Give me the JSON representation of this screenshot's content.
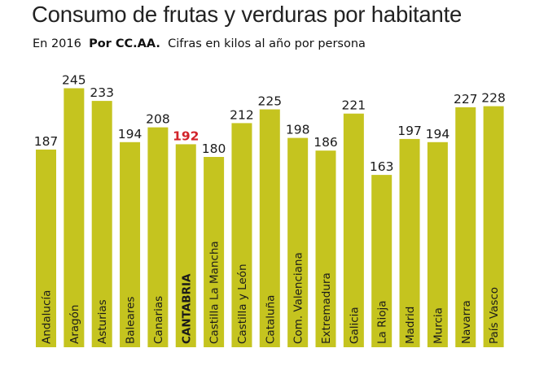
{
  "header": {
    "title": "Consumo de frutas y verduras por habitante",
    "subtitle_year": "En 2016",
    "subtitle_group": "Por CC.AA.",
    "subtitle_unit": "Cifras en kilos al año por persona"
  },
  "colors": {
    "bar": "#c5c41f",
    "label": "#1a1a1a",
    "highlight": "#d2232a"
  },
  "chart_data": {
    "type": "bar",
    "title": "Consumo de frutas y verduras por habitante",
    "categories": [
      "Andalucía",
      "Aragón",
      "Asturias",
      "Baleares",
      "Canarias",
      "CANTABRIA",
      "Castilla La Mancha",
      "Castilla y León",
      "Cataluña",
      "Com. Valenciana",
      "Extremadura",
      "Galicia",
      "La Rioja",
      "Madrid",
      "Murcia",
      "Navarra",
      "País Vasco"
    ],
    "values": [
      187,
      245,
      233,
      194,
      208,
      192,
      180,
      212,
      225,
      198,
      186,
      221,
      163,
      197,
      194,
      227,
      228
    ],
    "highlight": "CANTABRIA",
    "xlabel": "",
    "ylabel": "",
    "grid": false,
    "legend": "none"
  }
}
